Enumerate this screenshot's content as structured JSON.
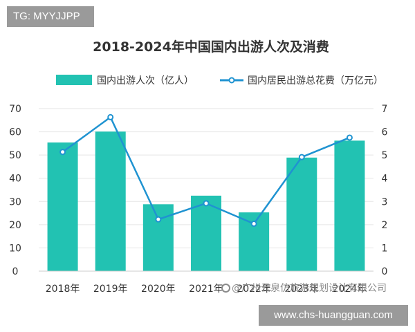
{
  "header_tag": "TG: MYYJJPP",
  "footer_url": "www.chs-huangguan.com",
  "watermark": "@广州云泉仿旅游规划设计有限公司",
  "colors": {
    "bar": "#22c2b2",
    "line": "#1f93d1",
    "grid": "#e5e5e5",
    "text": "#333333"
  },
  "chart_data": {
    "type": "bar",
    "title": "2018-2024年中国国内出游人次及消费",
    "categories": [
      "2018年",
      "2019年",
      "2020年",
      "2021年",
      "2022年",
      "2023年",
      "2024年"
    ],
    "series": [
      {
        "name": "国内出游人次（亿人）",
        "kind": "bar",
        "axis": "left",
        "values": [
          55.4,
          60.1,
          28.8,
          32.5,
          25.3,
          48.9,
          56.2
        ]
      },
      {
        "name": "国内居民出游总花费（万亿元）",
        "kind": "line",
        "axis": "right",
        "values": [
          5.13,
          6.63,
          2.23,
          2.92,
          2.04,
          4.91,
          5.75
        ]
      }
    ],
    "y_left": {
      "min": 0,
      "max": 70,
      "ticks": [
        "0",
        "10",
        "20",
        "30",
        "40",
        "50",
        "60",
        "70"
      ]
    },
    "y_right": {
      "min": 0,
      "max": 7,
      "ticks": [
        "0",
        "1",
        "2",
        "3",
        "4",
        "5",
        "6",
        "7"
      ]
    },
    "grid": true,
    "legend": "top"
  }
}
